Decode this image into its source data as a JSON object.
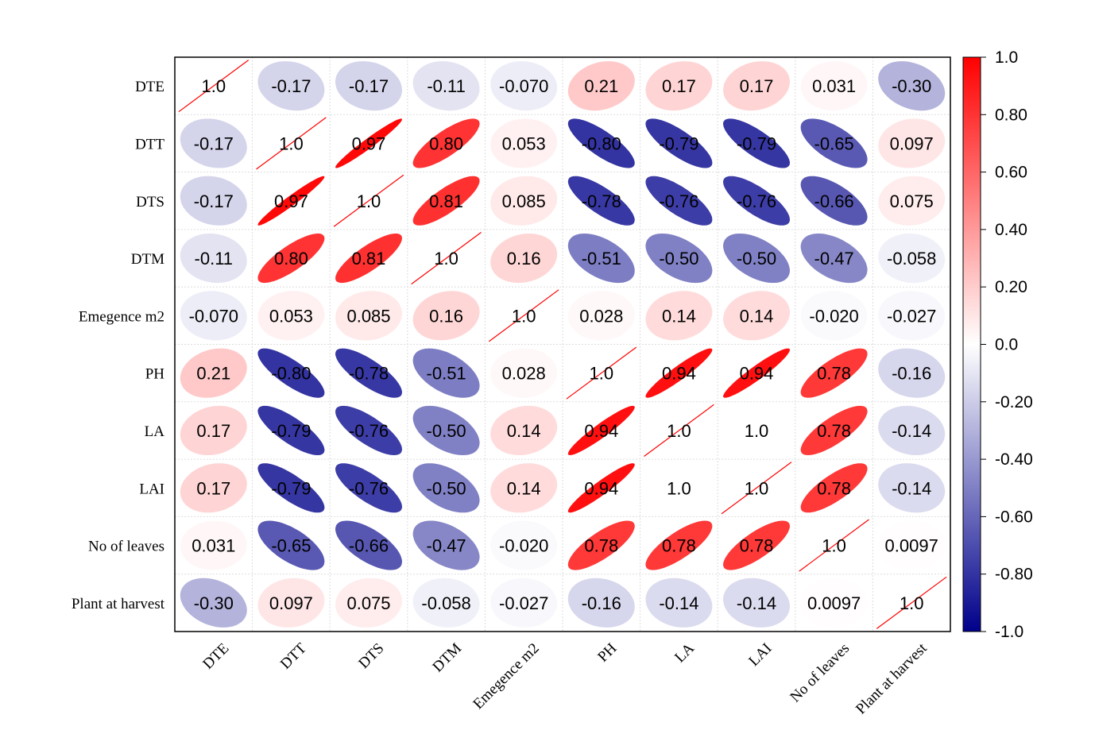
{
  "chart_data": {
    "type": "heatmap",
    "subtype": "correlation-ellipse",
    "variables": [
      "DTE",
      "DTT",
      "DTS",
      "DTM",
      "Emegence m2",
      "PH",
      "LA",
      "LAI",
      "No of leaves",
      "Plant at harvest"
    ],
    "values": [
      [
        1.0,
        -0.17,
        -0.17,
        -0.11,
        -0.07,
        0.21,
        0.17,
        0.17,
        0.031,
        -0.3
      ],
      [
        -0.17,
        1.0,
        0.97,
        0.8,
        0.053,
        -0.8,
        -0.79,
        -0.79,
        -0.65,
        0.097
      ],
      [
        -0.17,
        0.97,
        1.0,
        0.81,
        0.085,
        -0.78,
        -0.76,
        -0.76,
        -0.66,
        0.075
      ],
      [
        -0.11,
        0.8,
        0.81,
        1.0,
        0.16,
        -0.51,
        -0.5,
        -0.5,
        -0.47,
        -0.058
      ],
      [
        -0.07,
        0.053,
        0.085,
        0.16,
        1.0,
        0.028,
        0.14,
        0.14,
        -0.02,
        -0.027
      ],
      [
        0.21,
        -0.8,
        -0.78,
        -0.51,
        0.028,
        1.0,
        0.94,
        0.94,
        0.78,
        -0.16
      ],
      [
        0.17,
        -0.79,
        -0.76,
        -0.5,
        0.14,
        0.94,
        1.0,
        1.0,
        0.78,
        -0.14
      ],
      [
        0.17,
        -0.79,
        -0.76,
        -0.5,
        0.14,
        0.94,
        1.0,
        1.0,
        0.78,
        -0.14
      ],
      [
        0.031,
        -0.65,
        -0.66,
        -0.47,
        -0.02,
        0.78,
        0.78,
        0.78,
        1.0,
        0.0097
      ],
      [
        -0.3,
        0.097,
        0.075,
        -0.058,
        -0.027,
        -0.16,
        -0.14,
        -0.14,
        0.0097,
        1.0
      ]
    ],
    "labels": [
      [
        "1.0",
        "-0.17",
        "-0.17",
        "-0.11",
        "-0.070",
        "0.21",
        "0.17",
        "0.17",
        "0.031",
        "-0.30"
      ],
      [
        "-0.17",
        "1.0",
        "0.97",
        "0.80",
        "0.053",
        "-0.80",
        "-0.79",
        "-0.79",
        "-0.65",
        "0.097"
      ],
      [
        "-0.17",
        "0.97",
        "1.0",
        "0.81",
        "0.085",
        "-0.78",
        "-0.76",
        "-0.76",
        "-0.66",
        "0.075"
      ],
      [
        "-0.11",
        "0.80",
        "0.81",
        "1.0",
        "0.16",
        "-0.51",
        "-0.50",
        "-0.50",
        "-0.47",
        "-0.058"
      ],
      [
        "-0.070",
        "0.053",
        "0.085",
        "0.16",
        "1.0",
        "0.028",
        "0.14",
        "0.14",
        "-0.020",
        "-0.027"
      ],
      [
        "0.21",
        "-0.80",
        "-0.78",
        "-0.51",
        "0.028",
        "1.0",
        "0.94",
        "0.94",
        "0.78",
        "-0.16"
      ],
      [
        "0.17",
        "-0.79",
        "-0.76",
        "-0.50",
        "0.14",
        "0.94",
        "1.0",
        "1.0",
        "0.78",
        "-0.14"
      ],
      [
        "0.17",
        "-0.79",
        "-0.76",
        "-0.50",
        "0.14",
        "0.94",
        "1.0",
        "1.0",
        "0.78",
        "-0.14"
      ],
      [
        "0.031",
        "-0.65",
        "-0.66",
        "-0.47",
        "-0.020",
        "0.78",
        "0.78",
        "0.78",
        "1.0",
        "0.0097"
      ],
      [
        "-0.30",
        "0.097",
        "0.075",
        "-0.058",
        "-0.027",
        "-0.16",
        "-0.14",
        "-0.14",
        "0.0097",
        "1.0"
      ]
    ],
    "colorbar": {
      "range": [
        -1.0,
        1.0
      ],
      "ticks": [
        "1.0",
        "0.80",
        "0.60",
        "0.40",
        "0.20",
        "0.0",
        "-0.20",
        "-0.40",
        "-0.60",
        "-0.80",
        "-1.0"
      ],
      "colors": {
        "low": "#00008B",
        "mid": "#FFFFFF",
        "high": "#FF0000"
      }
    },
    "grid": true
  }
}
